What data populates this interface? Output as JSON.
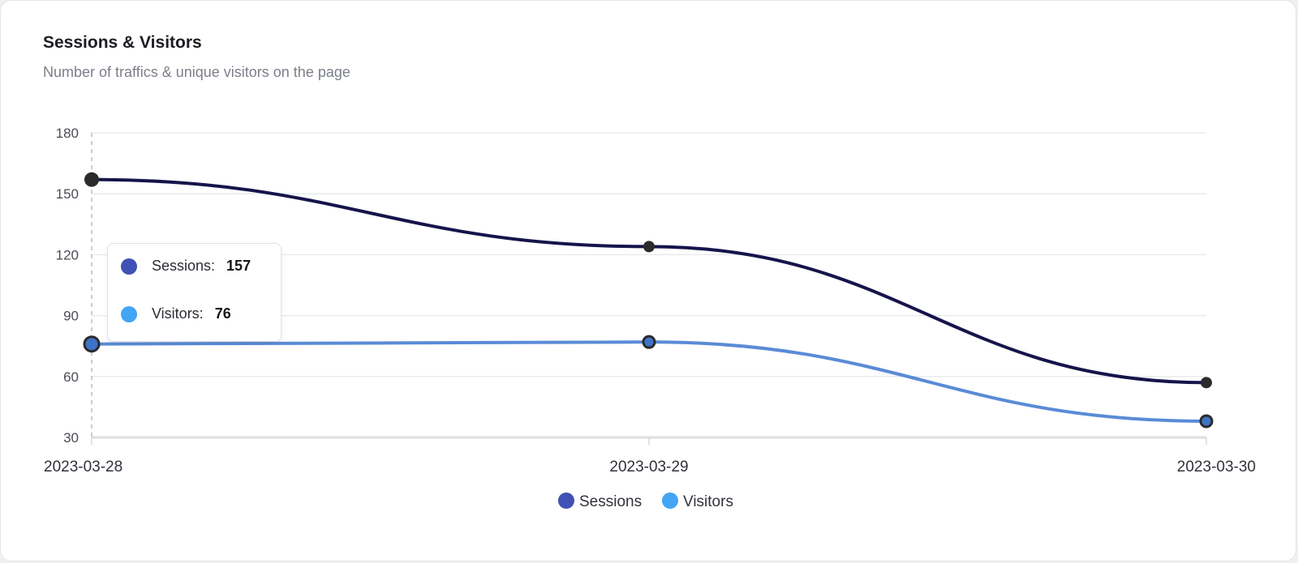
{
  "header": {
    "title": "Sessions & Visitors",
    "subtitle": "Number of traffics & unique visitors on the page"
  },
  "colors": {
    "sessions_line": "#16144a",
    "visitors_line": "#5a8bd6",
    "sessions_legend": "#3f51b5",
    "visitors_legend": "#42a5f5",
    "marker": "#2b2b2b",
    "visitors_marker_fill": "#3d74c7"
  },
  "tooltip": {
    "rows": [
      {
        "label": "Sessions:",
        "value": "157"
      },
      {
        "label": "Visitors:",
        "value": "76"
      }
    ]
  },
  "chart_data": {
    "type": "line",
    "x": [
      "2023-03-28",
      "2023-03-29",
      "2023-03-30"
    ],
    "series": [
      {
        "name": "Sessions",
        "values": [
          157,
          124,
          57
        ]
      },
      {
        "name": "Visitors",
        "values": [
          76,
          77,
          38
        ]
      }
    ],
    "ylim": [
      30,
      180
    ],
    "yticks": [
      30,
      60,
      90,
      120,
      150,
      180
    ],
    "grid": true,
    "legend": "bottom-center",
    "curve": "smooth"
  }
}
